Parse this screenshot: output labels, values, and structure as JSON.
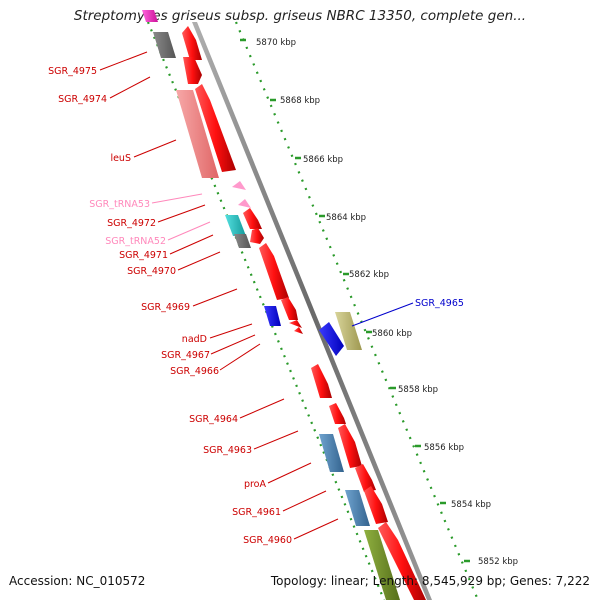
{
  "title": "Streptomyces griseus subsp. griseus NBRC 13350, complete gen...",
  "footer": {
    "accession": "Accession: NC_010572",
    "summary": "Topology: linear; Length: 8,545,929 bp; Genes: 7,222"
  },
  "colors": {
    "cds": "#ff1a1a",
    "trna": "#ff99cc",
    "label_default": "#cc0000",
    "label_trna": "#ff88bb",
    "label_highlight": "#0000cc",
    "backbone": "#888888",
    "ruler_dots": "#2a9a2a",
    "leus_feature": "#f08080",
    "gray_feature": "#666666",
    "cyan_feature": "#22cccc",
    "blue_feature": "#0000ff",
    "khaki_feature": "#bdb76b",
    "steel_feature": "#4682b4",
    "olive_feature": "#6b8e23",
    "magenta_feature": "#ff33cc"
  },
  "ruler_ticks": [
    "5870 kbp",
    "5868 kbp",
    "5866 kbp",
    "5864 kbp",
    "5862 kbp",
    "5860 kbp",
    "5858 kbp",
    "5856 kbp",
    "5854 kbp",
    "5852 kbp"
  ],
  "gene_labels": [
    "SGR_4975",
    "SGR_4974",
    "leuS",
    "SGR_tRNA53",
    "SGR_4972",
    "SGR_tRNA52",
    "SGR_4971",
    "SGR_4970",
    "SGR_4969",
    "nadD",
    "SGR_4967",
    "SGR_4966",
    "SGR_4964",
    "SGR_4963",
    "proA",
    "SGR_4961",
    "SGR_4960",
    "SGR_4965"
  ]
}
